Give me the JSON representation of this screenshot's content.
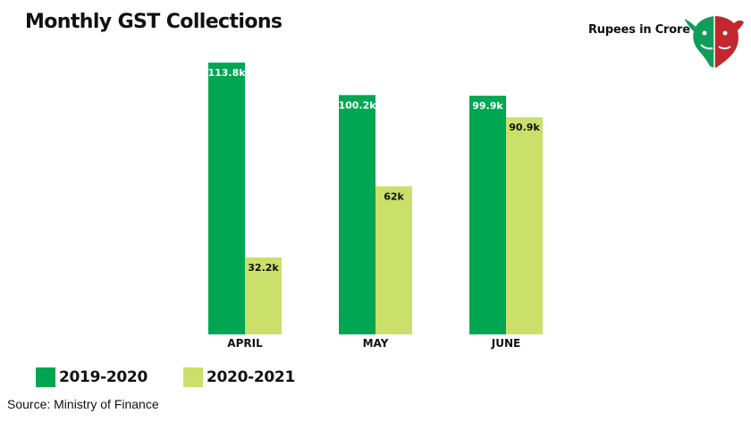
{
  "title": "Monthly GST Collections",
  "unit_note": "Rupees in Crore",
  "source": "Source: Ministry of Finance",
  "logo_icon": "bull-bear-logo-icon",
  "colors": {
    "series_2019": "#00a651",
    "series_2020": "#cbe06a"
  },
  "chart_data": {
    "type": "bar",
    "categories": [
      "APRIL",
      "MAY",
      "JUNE"
    ],
    "series": [
      {
        "name": "2019-2020",
        "values": [
          113.8,
          100.2,
          99.9
        ],
        "labels": [
          "113.8k",
          "100.2k",
          "99.9k"
        ],
        "color": "#00a651",
        "label_color": "#ffffff"
      },
      {
        "name": "2020-2021",
        "values": [
          32.2,
          62,
          90.9
        ],
        "labels": [
          "32.2k",
          "62k",
          "90.9k"
        ],
        "color": "#cbe06a",
        "label_color": "#111111"
      }
    ],
    "ylim": [
      0,
      113.8
    ],
    "grid": false,
    "legend_position": "bottom-left"
  }
}
